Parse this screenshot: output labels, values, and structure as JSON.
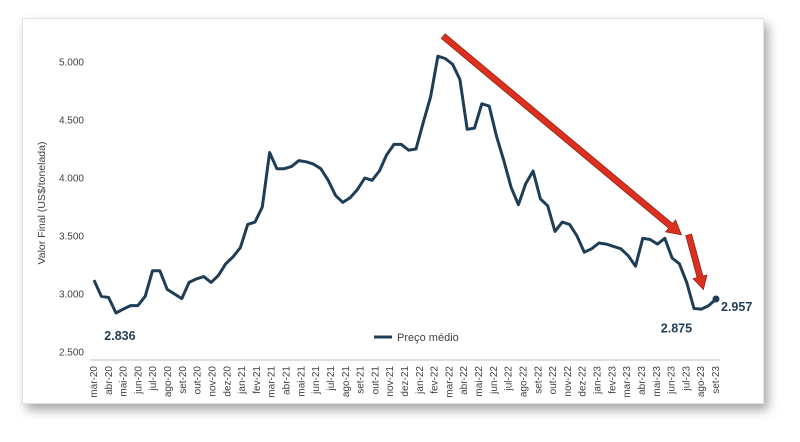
{
  "chart_data": {
    "type": "line",
    "title": "",
    "xlabel": "",
    "ylabel": "Valor Final (US$/tonelada)",
    "ylim": [
      2500,
      5000
    ],
    "yticks": [
      2500,
      3000,
      3500,
      4000,
      4500,
      5000
    ],
    "ytick_labels": [
      "2.500",
      "3.000",
      "3.500",
      "4.000",
      "4.500",
      "5.000"
    ],
    "grid": false,
    "legend_position": "bottom-center",
    "x_tick_labels": [
      "mar-20",
      "abr-20",
      "mai-20",
      "jun-20",
      "jul-20",
      "ago-20",
      "set-20",
      "out-20",
      "nov-20",
      "dez-20",
      "jan-21",
      "fev-21",
      "mar-21",
      "abr-21",
      "mai-21",
      "jun-21",
      "jul-21",
      "ago-21",
      "set-21",
      "out-21",
      "nov-21",
      "dez-21",
      "jan-22",
      "fev-22",
      "mar-22",
      "abr-22",
      "mai-22",
      "jun-22",
      "jul-22",
      "ago-22",
      "set-22",
      "out-22",
      "nov-22",
      "dez-22",
      "jan-23",
      "fev-23",
      "mar-23",
      "abr-23",
      "mai-23",
      "jun-23",
      "jul-23",
      "ago-23",
      "set-23"
    ],
    "series": [
      {
        "name": "Preço médio",
        "color": "#1f3e56",
        "values": [
          3120,
          2980,
          2970,
          2836,
          2870,
          2900,
          2900,
          2980,
          3200,
          3200,
          3040,
          3000,
          2960,
          3100,
          3130,
          3150,
          3100,
          3160,
          3260,
          3320,
          3400,
          3600,
          3620,
          3750,
          4220,
          4080,
          4080,
          4100,
          4150,
          4140,
          4120,
          4080,
          3980,
          3850,
          3790,
          3830,
          3900,
          4000,
          3980,
          4060,
          4200,
          4290,
          4290,
          4240,
          4250,
          4480,
          4700,
          5050,
          5030,
          4980,
          4850,
          4420,
          4430,
          4640,
          4620,
          4360,
          4150,
          3920,
          3770,
          3950,
          4060,
          3820,
          3760,
          3540,
          3620,
          3600,
          3500,
          3360,
          3390,
          3440,
          3430,
          3410,
          3390,
          3330,
          3240,
          3480,
          3470,
          3430,
          3480,
          3310,
          3260,
          3100,
          2875,
          2870,
          2900,
          2957
        ]
      }
    ],
    "annotations": [
      {
        "text": "2.836",
        "x_index": 3,
        "value": 2836
      },
      {
        "text": "2.875",
        "x_index": 82,
        "value": 2875
      },
      {
        "text": "2.957",
        "x_index": 85,
        "value": 2957
      }
    ],
    "arrows_color": "#d9301f"
  }
}
